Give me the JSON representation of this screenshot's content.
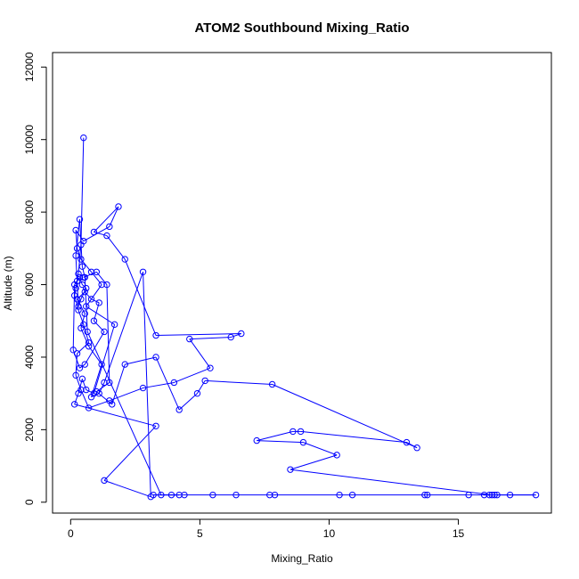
{
  "chart_data": {
    "type": "scatter",
    "title": "ATOM2 Southbound Mixing_Ratio",
    "xlabel": "Mixing_Ratio",
    "ylabel": "Altitude (m)",
    "xlim": [
      -0.7,
      18.6
    ],
    "ylim": [
      -300,
      12400
    ],
    "xticks": [
      0,
      5,
      10,
      15
    ],
    "yticks": [
      0,
      2000,
      4000,
      6000,
      8000,
      10000,
      12000
    ],
    "grid": false,
    "color": "#0000ff",
    "series": [
      {
        "points": [
          [
            0.5,
            10050
          ],
          [
            0.4,
            7100
          ],
          [
            0.3,
            6300
          ],
          [
            0.2,
            5900
          ],
          [
            0.15,
            5700
          ],
          [
            0.3,
            5300
          ],
          [
            0.5,
            4900
          ],
          [
            0.7,
            4400
          ],
          [
            0.25,
            4100
          ],
          [
            0.2,
            3500
          ],
          [
            0.4,
            3100
          ],
          [
            0.7,
            2600
          ],
          [
            1.5,
            2800
          ],
          [
            2.8,
            3150
          ],
          [
            4.0,
            3300
          ],
          [
            5.4,
            3700
          ],
          [
            4.6,
            4500
          ],
          [
            6.2,
            4550
          ],
          [
            6.6,
            4650
          ],
          [
            3.3,
            4600
          ],
          [
            2.1,
            6700
          ],
          [
            1.4,
            7350
          ],
          [
            0.9,
            7450
          ],
          [
            1.85,
            8150
          ],
          [
            1.5,
            7600
          ],
          [
            0.5,
            7200
          ],
          [
            0.2,
            7500
          ],
          [
            0.25,
            7000
          ],
          [
            0.4,
            6700
          ],
          [
            0.8,
            6350
          ],
          [
            1.2,
            6000
          ],
          [
            0.6,
            5400
          ],
          [
            1.7,
            4900
          ],
          [
            0.9,
            3000
          ],
          [
            0.6,
            3100
          ],
          [
            0.45,
            3400
          ],
          [
            0.3,
            3000
          ],
          [
            0.15,
            2700
          ],
          [
            3.3,
            2100
          ],
          [
            1.3,
            600
          ],
          [
            3.1,
            150
          ],
          [
            2.8,
            6350
          ],
          [
            1.3,
            3300
          ],
          [
            1.1,
            3000
          ],
          [
            0.8,
            2900
          ],
          [
            1.2,
            3800
          ],
          [
            0.7,
            4300
          ],
          [
            0.4,
            4800
          ],
          [
            0.55,
            5200
          ],
          [
            0.25,
            5600
          ],
          [
            0.55,
            5800
          ],
          [
            0.8,
            5600
          ],
          [
            1.1,
            5500
          ],
          [
            0.9,
            5000
          ],
          [
            1.3,
            4700
          ],
          [
            0.55,
            3800
          ],
          [
            0.35,
            3700
          ],
          [
            0.1,
            4200
          ],
          [
            0.15,
            6000
          ],
          [
            0.25,
            6100
          ],
          [
            0.35,
            6200
          ],
          [
            0.45,
            6000
          ],
          [
            0.6,
            5900
          ],
          [
            0.4,
            5600
          ],
          [
            0.3,
            5400
          ],
          [
            0.2,
            6800
          ],
          [
            0.35,
            7800
          ],
          [
            0.45,
            6500
          ],
          [
            0.55,
            6200
          ],
          [
            0.65,
            4700
          ],
          [
            3.5,
            200
          ],
          [
            4.2,
            200
          ],
          [
            3.2,
            200
          ],
          [
            3.9,
            200
          ],
          [
            4.4,
            200
          ],
          [
            5.5,
            200
          ],
          [
            6.4,
            200
          ],
          [
            7.7,
            200
          ],
          [
            7.9,
            200
          ],
          [
            10.4,
            200
          ],
          [
            10.9,
            200
          ],
          [
            13.7,
            200
          ],
          [
            13.8,
            200
          ],
          [
            15.4,
            200
          ],
          [
            16.4,
            200
          ],
          [
            16.5,
            200
          ],
          [
            17.0,
            200
          ],
          [
            18.0,
            200
          ],
          [
            16.0,
            200
          ],
          [
            16.2,
            200
          ],
          [
            16.3,
            200
          ],
          [
            8.5,
            900
          ],
          [
            10.3,
            1300
          ],
          [
            9.0,
            1650
          ],
          [
            7.2,
            1700
          ],
          [
            8.6,
            1950
          ],
          [
            8.9,
            1950
          ],
          [
            13.0,
            1650
          ],
          [
            13.4,
            1500
          ],
          [
            7.8,
            3250
          ],
          [
            5.2,
            3350
          ],
          [
            4.9,
            3000
          ],
          [
            4.2,
            2550
          ],
          [
            3.3,
            4000
          ],
          [
            2.1,
            3800
          ],
          [
            1.6,
            2700
          ],
          [
            1.0,
            3050
          ],
          [
            1.5,
            3300
          ],
          [
            1.4,
            6000
          ],
          [
            1.0,
            6350
          ],
          [
            0.5,
            6200
          ]
        ]
      }
    ]
  }
}
